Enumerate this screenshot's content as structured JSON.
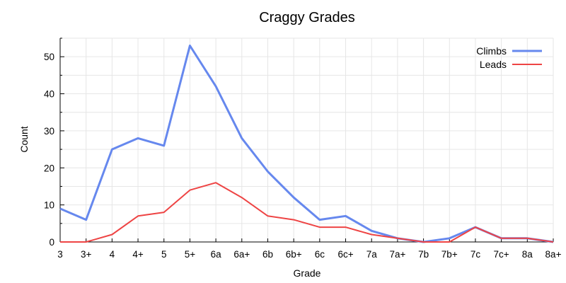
{
  "chart_data": {
    "type": "line",
    "title": "Craggy Grades",
    "xlabel": "Grade",
    "ylabel": "Count",
    "categories": [
      "3",
      "3+",
      "4",
      "4+",
      "5",
      "5+",
      "6a",
      "6a+",
      "6b",
      "6b+",
      "6c",
      "6c+",
      "7a",
      "7a+",
      "7b",
      "7b+",
      "7c",
      "7c+",
      "8a",
      "8a+"
    ],
    "ylim": [
      0,
      55
    ],
    "yticks": [
      0,
      10,
      20,
      30,
      40,
      50
    ],
    "grid": true,
    "legend_position": "top-right",
    "series": [
      {
        "name": "Climbs",
        "color": "#6688ee",
        "values": [
          9,
          6,
          25,
          28,
          26,
          53,
          42,
          28,
          19,
          12,
          6,
          7,
          3,
          1,
          0,
          1,
          4,
          1,
          1,
          0
        ]
      },
      {
        "name": "Leads",
        "color": "#ee4444",
        "values": [
          0,
          0,
          2,
          7,
          8,
          14,
          16,
          12,
          7,
          6,
          4,
          4,
          2,
          1,
          0,
          0,
          4,
          1,
          1,
          0
        ]
      }
    ]
  }
}
